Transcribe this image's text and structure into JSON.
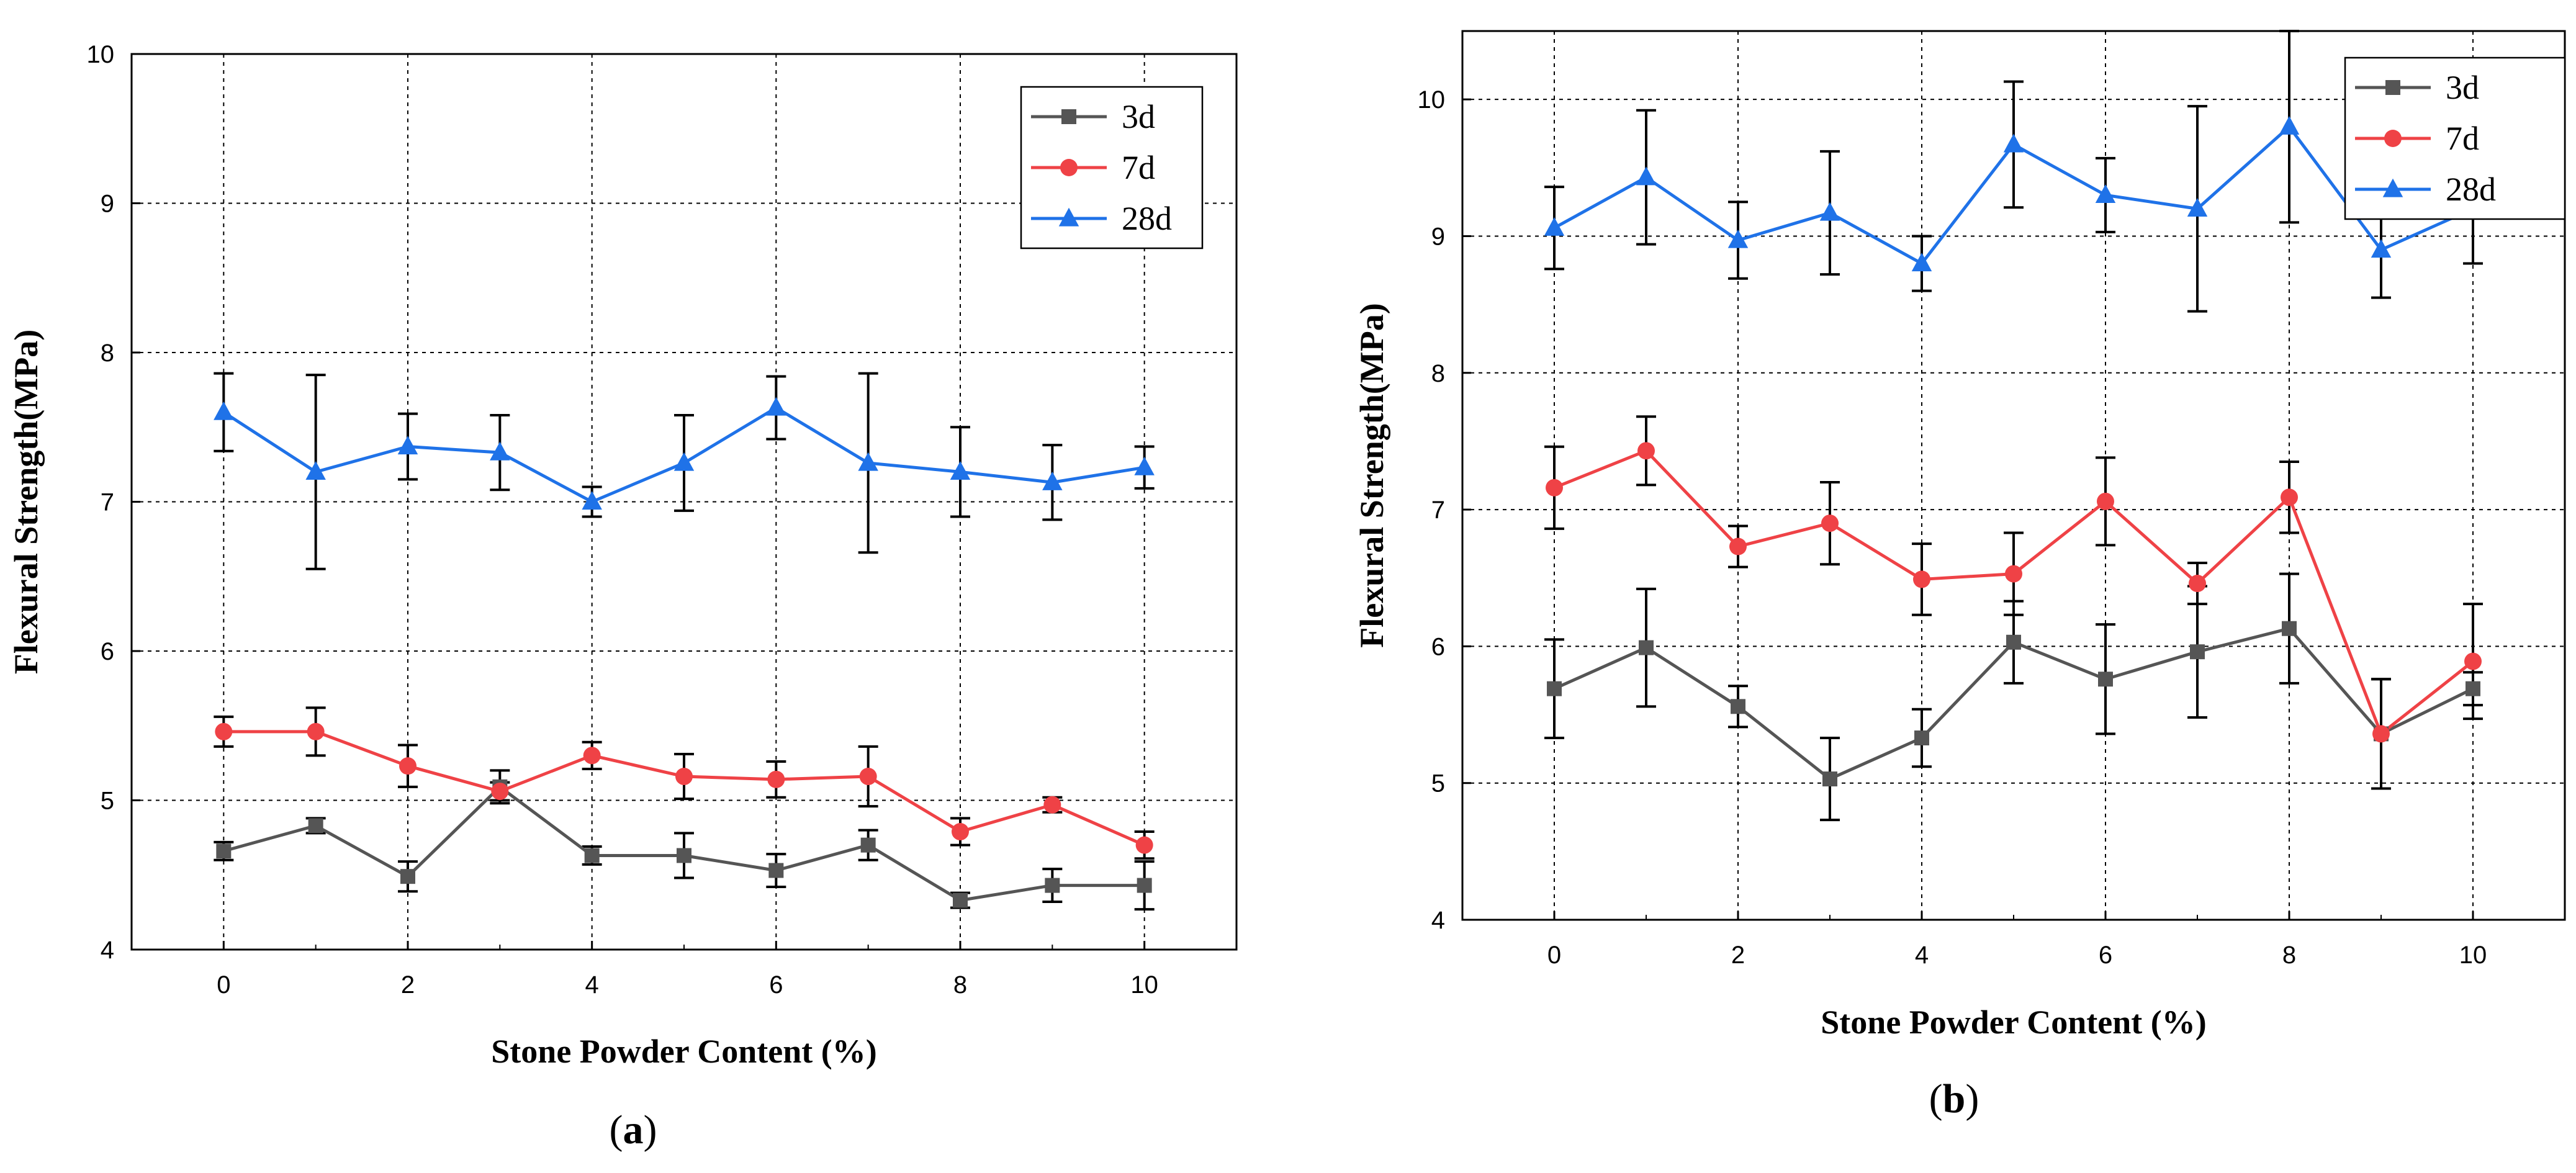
{
  "chart_data": [
    {
      "type": "line",
      "panel_label": {
        "open": "(",
        "letter": "a",
        "close": ")"
      },
      "title": "",
      "xlabel": "Stone Powder Content (%)",
      "ylabel": "Flexural Strength(MPa)",
      "x": [
        0,
        1,
        2,
        3,
        4,
        5,
        6,
        7,
        8,
        9,
        10
      ],
      "xlim": [
        -1,
        11
      ],
      "ylim": [
        4,
        10
      ],
      "xticks": [
        0,
        2,
        4,
        6,
        8,
        10
      ],
      "yticks": [
        4,
        5,
        6,
        7,
        8,
        9,
        10
      ],
      "grid": true,
      "legend_position": "top-right",
      "series": [
        {
          "name": "3d",
          "color": "#555555",
          "marker": "square",
          "values": [
            4.66,
            4.83,
            4.49,
            5.09,
            4.63,
            4.63,
            4.53,
            4.7,
            4.33,
            4.43,
            4.43
          ],
          "errors": [
            0.06,
            0.05,
            0.1,
            0.11,
            0.06,
            0.15,
            0.11,
            0.1,
            0.05,
            0.11,
            0.16
          ]
        },
        {
          "name": "7d",
          "color": "#ef4246",
          "marker": "circle",
          "values": [
            5.46,
            5.46,
            5.23,
            5.06,
            5.3,
            5.16,
            5.14,
            5.16,
            4.79,
            4.97,
            4.7
          ],
          "errors": [
            0.1,
            0.16,
            0.14,
            0.06,
            0.09,
            0.15,
            0.12,
            0.2,
            0.09,
            0.05,
            0.09
          ]
        },
        {
          "name": "28d",
          "color": "#1f72e8",
          "marker": "triangle",
          "values": [
            7.6,
            7.2,
            7.37,
            7.33,
            7.0,
            7.26,
            7.63,
            7.26,
            7.2,
            7.13,
            7.23
          ],
          "errors": [
            0.26,
            0.65,
            0.22,
            0.25,
            0.1,
            0.32,
            0.21,
            0.6,
            0.3,
            0.25,
            0.14
          ]
        }
      ]
    },
    {
      "type": "line",
      "panel_label": {
        "open": "(",
        "letter": "b",
        "close": ")"
      },
      "title": "",
      "xlabel": "Stone Powder Content (%)",
      "ylabel": "Flexural Strength(MPa)",
      "x": [
        0,
        1,
        2,
        3,
        4,
        5,
        6,
        7,
        8,
        9,
        10
      ],
      "xlim": [
        -1,
        11
      ],
      "ylim": [
        4,
        10.5
      ],
      "xticks": [
        0,
        2,
        4,
        6,
        8,
        10
      ],
      "yticks": [
        4,
        5,
        6,
        7,
        8,
        9,
        10
      ],
      "grid": true,
      "legend_position": "top-right",
      "series": [
        {
          "name": "3d",
          "color": "#555555",
          "marker": "square",
          "values": [
            5.69,
            5.99,
            5.56,
            5.03,
            5.33,
            6.03,
            5.76,
            5.96,
            6.13,
            5.36,
            5.69
          ],
          "errors": [
            0.36,
            0.43,
            0.15,
            0.3,
            0.21,
            0.3,
            0.4,
            0.48,
            0.4,
            0.4,
            0.12
          ]
        },
        {
          "name": "7d",
          "color": "#ef4246",
          "marker": "circle",
          "values": [
            7.16,
            7.43,
            6.73,
            6.9,
            6.49,
            6.53,
            7.06,
            6.46,
            7.09,
            5.36,
            5.89
          ],
          "errors": [
            0.3,
            0.25,
            0.15,
            0.3,
            0.26,
            0.3,
            0.32,
            0.15,
            0.26,
            0.4,
            0.42
          ]
        },
        {
          "name": "28d",
          "color": "#1f72e8",
          "marker": "triangle",
          "values": [
            9.06,
            9.43,
            8.97,
            9.17,
            8.8,
            9.67,
            9.3,
            9.2,
            9.8,
            8.9,
            9.2
          ],
          "errors": [
            0.3,
            0.49,
            0.28,
            0.45,
            0.2,
            0.46,
            0.27,
            0.75,
            0.7,
            0.35,
            0.4
          ]
        }
      ]
    }
  ]
}
